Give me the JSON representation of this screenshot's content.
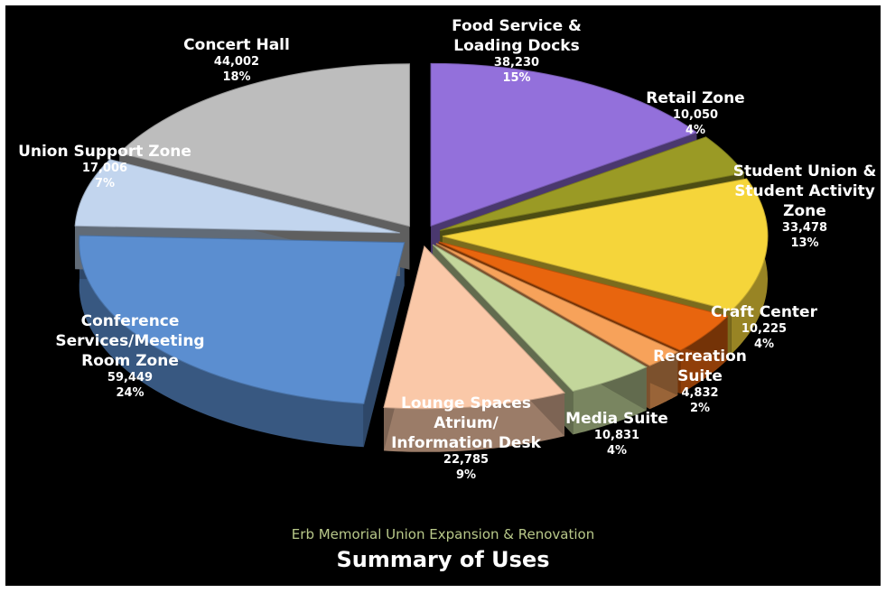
{
  "chart_data": {
    "type": "pie",
    "title": "Summary of Uses",
    "subtitle": "Erb Memorial Union Expansion & Renovation",
    "slices": [
      {
        "label": "Food Service & Loading Docks",
        "value": 38230,
        "value_text": "38,230",
        "percent_text": "15%",
        "color": "#9370db"
      },
      {
        "label": "Retail Zone",
        "value": 10050,
        "value_text": "10,050",
        "percent_text": "4%",
        "color": "#9a9a25"
      },
      {
        "label": "Student Union & Student Activity Zone",
        "value": 33478,
        "value_text": "33,478",
        "percent_text": "13%",
        "color": "#f5d53a"
      },
      {
        "label": "Craft Center",
        "value": 10225,
        "value_text": "10,225",
        "percent_text": "4%",
        "color": "#e8650e"
      },
      {
        "label": "Recreation Suite",
        "value": 4832,
        "value_text": "4,832",
        "percent_text": "2%",
        "color": "#f7a25a"
      },
      {
        "label": "Media Suite",
        "value": 10831,
        "value_text": "10,831",
        "percent_text": "4%",
        "color": "#c3d69b"
      },
      {
        "label": "Lounge Spaces Atrium/ Information Desk",
        "value": 22785,
        "value_text": "22,785",
        "percent_text": "9%",
        "color": "#fac8a8"
      },
      {
        "label": "Conference Services/Meeting Room Zone",
        "value": 59449,
        "value_text": "59,449",
        "percent_text": "24%",
        "color": "#5b8ed0"
      },
      {
        "label": "Union Support Zone",
        "value": 17006,
        "value_text": "17,006",
        "percent_text": "7%",
        "color": "#c2d5ee"
      },
      {
        "label": "Concert Hall",
        "value": 44002,
        "value_text": "44,002",
        "percent_text": "18%",
        "color": "#bdbdbd"
      }
    ]
  }
}
